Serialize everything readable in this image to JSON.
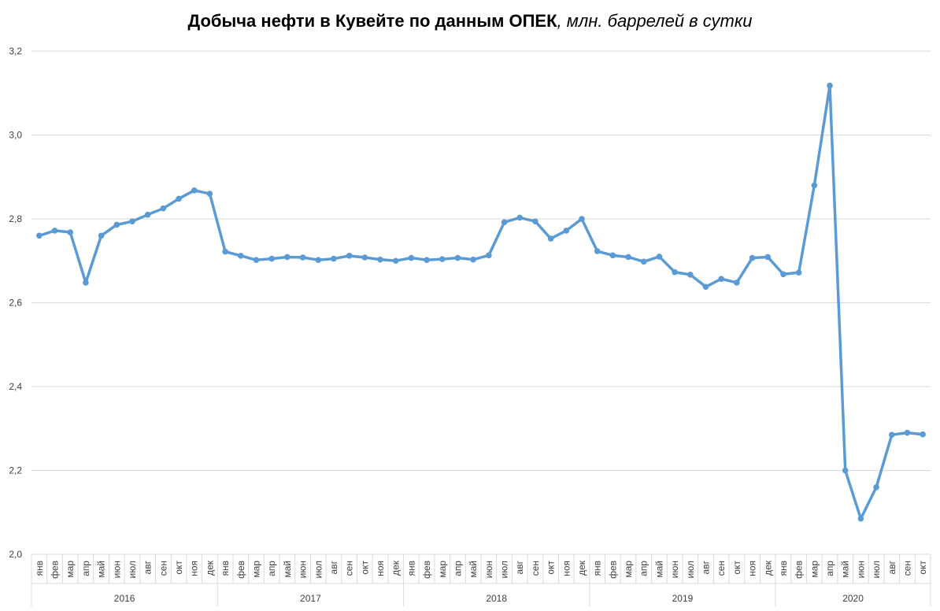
{
  "chart_data": {
    "type": "line",
    "title": "Добыча нефти в Кувейте по данным ОПЕК",
    "subtitle": ", млн. баррелей в сутки",
    "xlabel": "",
    "ylabel": "",
    "ylim": [
      2.0,
      3.2
    ],
    "yticks": [
      "2,0",
      "2,2",
      "2,4",
      "2,6",
      "2,8",
      "3,0",
      "3,2"
    ],
    "grid": true,
    "line_color": "#5B9BD5",
    "grid_color": "#d9d9d9",
    "month_labels": [
      "янв",
      "фев",
      "мар",
      "апр",
      "май",
      "июн",
      "июл",
      "авг",
      "сен",
      "окт",
      "ноя",
      "дек"
    ],
    "years": [
      "2016",
      "2017",
      "2018",
      "2019",
      "2020"
    ],
    "months_last_year": 10,
    "series": [
      {
        "values": [
          2.76,
          2.772,
          2.768,
          2.648,
          2.76,
          2.786,
          2.794,
          2.81,
          2.825,
          2.848,
          2.868,
          2.86,
          2.722,
          2.712,
          2.702,
          2.705,
          2.709,
          2.708,
          2.702,
          2.705,
          2.712,
          2.708,
          2.703,
          2.7,
          2.707,
          2.702,
          2.704,
          2.707,
          2.703,
          2.713,
          2.792,
          2.803,
          2.794,
          2.753,
          2.772,
          2.8,
          2.723,
          2.713,
          2.709,
          2.698,
          2.71,
          2.673,
          2.667,
          2.638,
          2.657,
          2.648,
          2.707,
          2.709,
          2.668,
          2.672,
          2.88,
          3.118,
          2.2,
          2.085,
          2.16,
          2.285,
          2.29,
          2.286
        ]
      }
    ]
  }
}
